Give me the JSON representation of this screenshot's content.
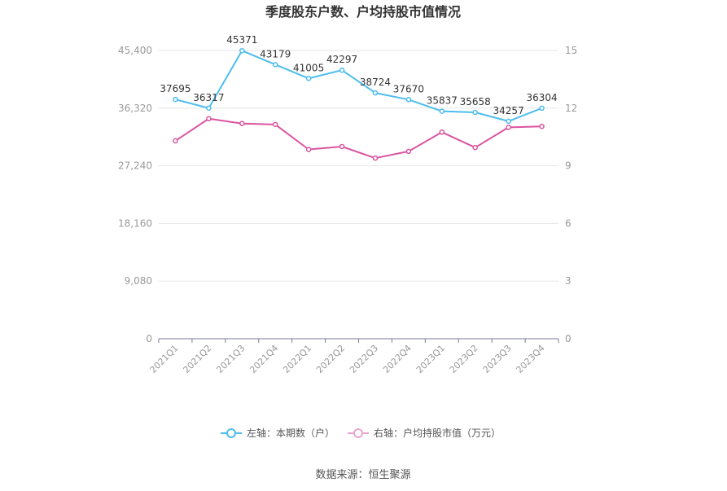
{
  "chart_data": {
    "type": "line",
    "title": "季度股东户数、户均持股市值情况",
    "categories": [
      "2021Q1",
      "2021Q2",
      "2021Q3",
      "2021Q4",
      "2022Q1",
      "2022Q2",
      "2022Q3",
      "2022Q4",
      "2023Q1",
      "2023Q2",
      "2023Q3",
      "2023Q4"
    ],
    "left_axis": {
      "ticks": [
        "0",
        "9,080",
        "18,160",
        "27,240",
        "36,320",
        "45,400"
      ],
      "min": 0,
      "max": 45400
    },
    "right_axis": {
      "ticks": [
        "0",
        "3",
        "6",
        "9",
        "12",
        "15"
      ],
      "min": 0,
      "max": 15
    },
    "series": [
      {
        "name": "左轴：本期数（户）",
        "axis": "left",
        "color": "#4dbdee",
        "values": [
          37695,
          36317,
          45371,
          43179,
          41005,
          42297,
          38724,
          37670,
          35837,
          35658,
          34257,
          36304
        ],
        "labels": [
          "37695",
          "36317",
          "45371",
          "43179",
          "41005",
          "42297",
          "38724",
          "37670",
          "35837",
          "35658",
          "34257",
          "36304"
        ]
      },
      {
        "name": "右轴：户均持股市值（万元）",
        "axis": "right",
        "color": "#d9559f",
        "values": [
          10.3,
          11.45,
          11.2,
          11.15,
          9.85,
          10.0,
          9.4,
          9.75,
          10.75,
          9.95,
          11.0,
          11.05
        ]
      }
    ],
    "grid": true,
    "legend_position": "bottom"
  },
  "source": "数据来源：恒生聚源"
}
